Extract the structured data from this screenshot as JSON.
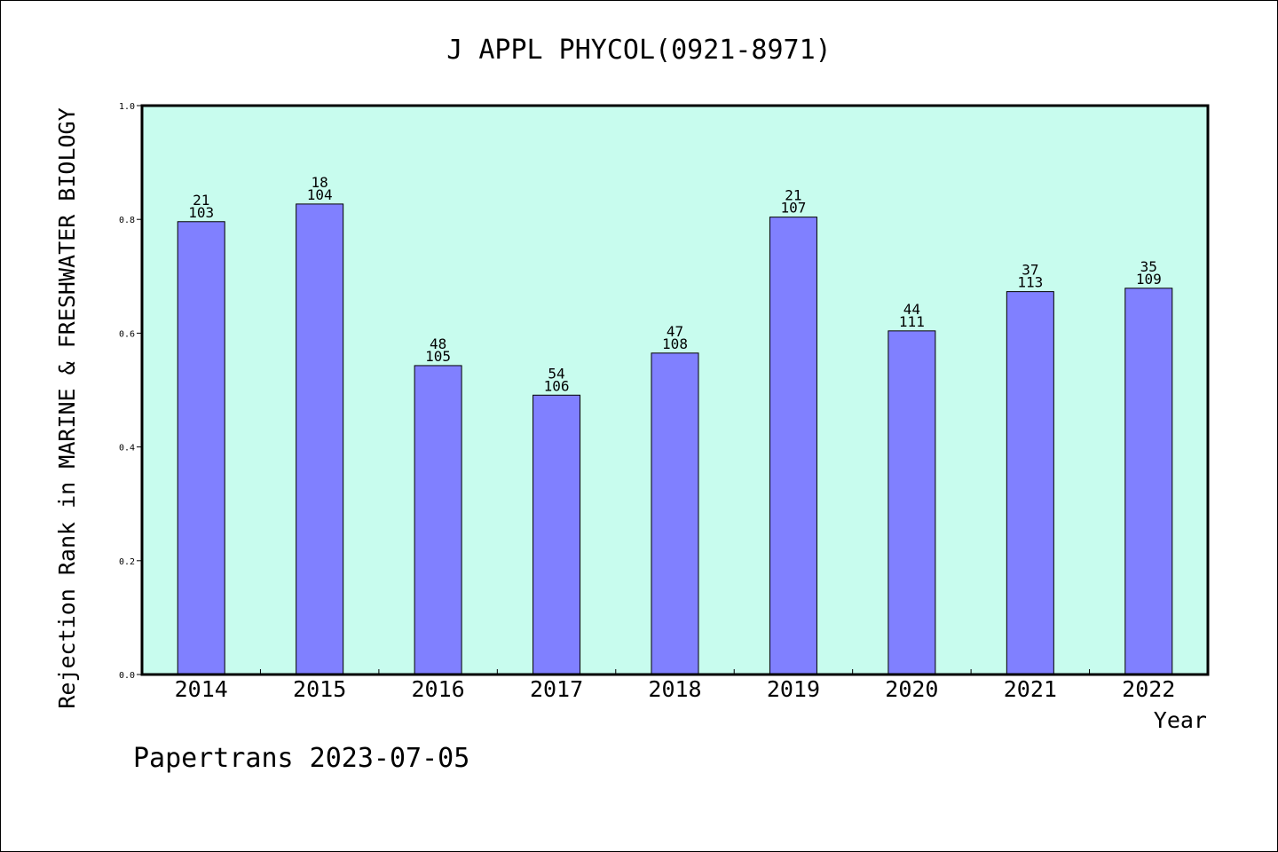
{
  "chart_data": {
    "type": "bar",
    "title": "J APPL PHYCOL(0921-8971)",
    "xlabel": "Year",
    "ylabel": "Rejection Rank in MARINE & FRESHWATER BIOLOGY",
    "ylim": [
      0,
      1.0
    ],
    "yticks": [
      "0.0",
      "0.2",
      "0.4",
      "0.6",
      "0.8",
      "1.0"
    ],
    "categories": [
      "2014",
      "2015",
      "2016",
      "2017",
      "2018",
      "2019",
      "2020",
      "2021",
      "2022"
    ],
    "values": [
      0.796,
      0.827,
      0.543,
      0.491,
      0.565,
      0.804,
      0.604,
      0.673,
      0.679
    ],
    "labels_top": [
      "21",
      "18",
      "48",
      "54",
      "47",
      "21",
      "44",
      "37",
      "35"
    ],
    "labels_bottom": [
      "103",
      "104",
      "105",
      "106",
      "108",
      "107",
      "111",
      "113",
      "109"
    ],
    "grid": false,
    "plot_background": "#c8fcee",
    "bar_color": "#8080ff"
  },
  "footer": "Papertrans 2023-07-05"
}
